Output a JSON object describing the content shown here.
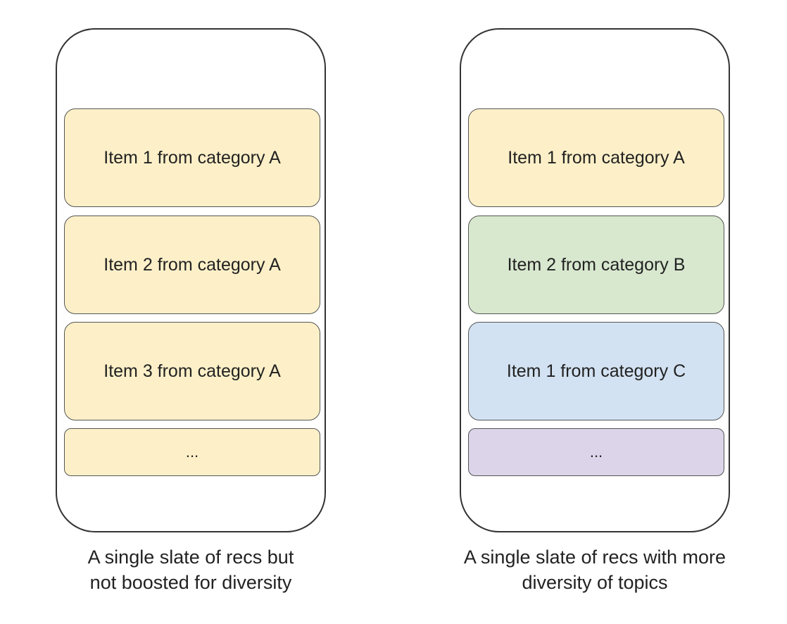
{
  "panels": [
    {
      "caption": [
        "A single slate of recs but",
        "not boosted for diversity"
      ],
      "items": [
        {
          "label": "Item 1 from category A",
          "color": "#fdf0c8"
        },
        {
          "label": "Item 2 from category A",
          "color": "#fdf0c8"
        },
        {
          "label": "Item 3 from category A",
          "color": "#fdf0c8"
        },
        {
          "label": "...",
          "color": "#fdf0c8"
        }
      ]
    },
    {
      "caption": [
        "A single slate of recs with more",
        "diversity of topics"
      ],
      "items": [
        {
          "label": "Item 1 from category A",
          "color": "#fdf0c8"
        },
        {
          "label": "Item 2 from category B",
          "color": "#d8e8cf"
        },
        {
          "label": "Item 1 from category C",
          "color": "#d3e2f2"
        },
        {
          "label": "...",
          "color": "#dcd4e8"
        }
      ]
    }
  ]
}
